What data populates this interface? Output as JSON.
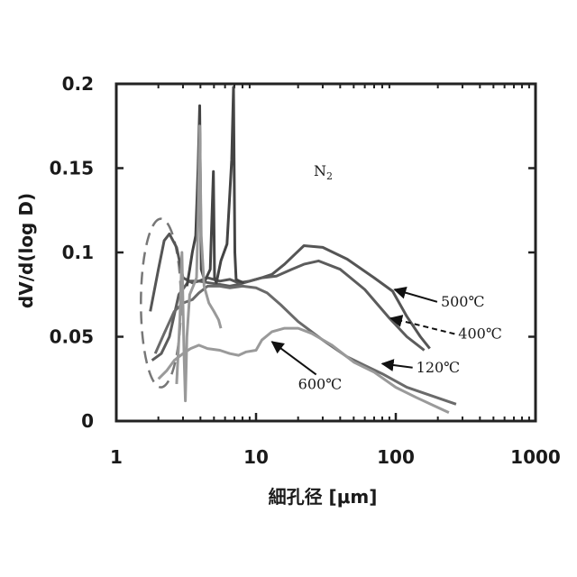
{
  "chart_data": {
    "type": "line",
    "title": "",
    "xlabel": "細孔径 [μm]",
    "ylabel": "dV/d(log D)",
    "xscale": "log",
    "xlim": [
      1,
      1000
    ],
    "ylim": [
      0,
      0.2
    ],
    "xticks": [
      1,
      10,
      100,
      1000
    ],
    "xtick_labels": [
      "1",
      "10",
      "100",
      "1000"
    ],
    "yticks": [
      0,
      0.05,
      0.1,
      0.15,
      0.2
    ],
    "ytick_labels": [
      "0",
      "0.05",
      "0.1",
      "0.15",
      "0.2"
    ],
    "grid": false,
    "legend": "none",
    "inset_label": {
      "text": "N",
      "subscript": "2"
    },
    "series": [
      {
        "name": "500℃",
        "color": "#555555",
        "x": [
          1.75,
          2.0,
          2.2,
          2.4,
          2.7,
          3.0,
          3.5,
          3.9,
          4.5,
          5.5,
          6.5,
          7.5,
          9,
          11,
          13,
          16,
          19,
          22,
          30,
          45,
          70,
          95,
          120,
          150,
          175
        ],
        "y": [
          0.065,
          0.09,
          0.107,
          0.111,
          0.103,
          0.085,
          0.082,
          0.083,
          0.085,
          0.083,
          0.084,
          0.082,
          0.083,
          0.085,
          0.087,
          0.093,
          0.099,
          0.104,
          0.103,
          0.096,
          0.085,
          0.077,
          0.062,
          0.05,
          0.043
        ]
      },
      {
        "name": "400℃",
        "color": "#5c5c5c",
        "x": [
          1.8,
          2.1,
          2.4,
          2.8,
          3.3,
          3.9,
          4.6,
          5.5,
          6.5,
          7.5,
          9,
          11,
          14,
          18,
          22,
          28,
          40,
          60,
          90,
          120,
          160
        ],
        "y": [
          0.036,
          0.04,
          0.05,
          0.075,
          0.083,
          0.083,
          0.082,
          0.081,
          0.08,
          0.081,
          0.083,
          0.085,
          0.086,
          0.09,
          0.093,
          0.095,
          0.09,
          0.078,
          0.061,
          0.05,
          0.042
        ]
      },
      {
        "name": "120℃",
        "color": "#6a6a6a",
        "x": [
          1.9,
          2.2,
          2.6,
          3.0,
          3.5,
          3.9,
          4.5,
          5.5,
          6.5,
          8,
          10,
          12,
          15,
          20,
          30,
          45,
          60,
          80,
          120,
          180,
          270
        ],
        "y": [
          0.04,
          0.052,
          0.065,
          0.07,
          0.072,
          0.076,
          0.08,
          0.08,
          0.079,
          0.08,
          0.079,
          0.076,
          0.069,
          0.059,
          0.048,
          0.038,
          0.033,
          0.028,
          0.02,
          0.015,
          0.01
        ]
      },
      {
        "name": "600℃",
        "color": "#9a9a9a",
        "x": [
          2.0,
          2.3,
          2.6,
          3.0,
          3.4,
          3.9,
          4.5,
          5.5,
          6.5,
          7.5,
          8.5,
          10,
          11,
          13,
          16,
          20,
          25,
          35,
          50,
          70,
          100,
          140,
          200,
          240
        ],
        "y": [
          0.025,
          0.03,
          0.036,
          0.04,
          0.043,
          0.045,
          0.043,
          0.042,
          0.04,
          0.039,
          0.041,
          0.042,
          0.048,
          0.053,
          0.055,
          0.055,
          0.052,
          0.045,
          0.035,
          0.029,
          0.02,
          0.014,
          0.008,
          0.005
        ]
      },
      {
        "name": "spike-a",
        "color": "#444444",
        "x": [
          3.2,
          3.35,
          3.5,
          3.7,
          3.85,
          3.95,
          4.05,
          4.3,
          4.7,
          4.95,
          5.05,
          5.2,
          5.6,
          6.2,
          6.7,
          6.9,
          7.05,
          7.2,
          7.6,
          8.2
        ],
        "y": [
          0.08,
          0.09,
          0.1,
          0.11,
          0.15,
          0.187,
          0.09,
          0.083,
          0.09,
          0.148,
          0.085,
          0.082,
          0.095,
          0.105,
          0.155,
          0.198,
          0.1,
          0.084,
          0.083,
          0.082
        ]
      },
      {
        "name": "spike-b",
        "color": "#999999",
        "x": [
          2.7,
          2.85,
          2.95,
          3.05,
          3.12,
          3.2,
          3.35,
          3.55,
          3.75,
          3.85,
          3.95,
          4.05,
          4.25,
          4.6,
          5.0,
          5.4,
          5.6
        ],
        "y": [
          0.022,
          0.06,
          0.1,
          0.04,
          0.012,
          0.05,
          0.075,
          0.08,
          0.085,
          0.12,
          0.175,
          0.11,
          0.08,
          0.07,
          0.065,
          0.06,
          0.055
        ]
      }
    ],
    "annotations": [
      {
        "text": "500℃",
        "x": 210,
        "y": 0.068,
        "arrow_to": [
          98,
          0.078
        ],
        "arrow_style": "solid"
      },
      {
        "text": "400℃",
        "x": 280,
        "y": 0.049,
        "arrow_to": [
          92,
          0.061
        ],
        "arrow_style": "dashed"
      },
      {
        "text": "120℃",
        "x": 140,
        "y": 0.029,
        "arrow_to": [
          80,
          0.034
        ],
        "arrow_style": "solid"
      },
      {
        "text": "600℃",
        "x": 20,
        "y": 0.019,
        "arrow_to": [
          13,
          0.047
        ],
        "arrow_style": "solid"
      }
    ],
    "highlight": {
      "shape": "dashed ellipse",
      "x": [
        1.5,
        2.9
      ],
      "y": [
        0.02,
        0.12
      ]
    }
  }
}
